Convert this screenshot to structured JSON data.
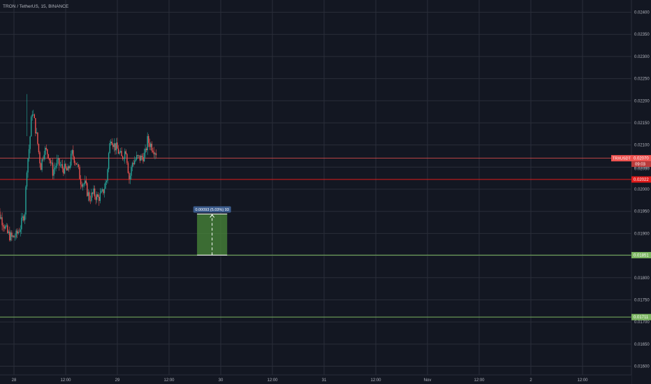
{
  "header": {
    "title": "TRON / TetherUS, 15, BINANCE"
  },
  "colors": {
    "background": "#131722",
    "grid": "#2a2e39",
    "up": "#26a69a",
    "down": "#ef5350",
    "axis_text": "#b2b5be",
    "price_line": "#ef5350",
    "level_red": "#e01b1b",
    "level_green": "#7bb661",
    "measure_fill": "#4a8a3a",
    "measure_label": "#3b5b8c"
  },
  "chart_data": {
    "type": "candlestick",
    "symbol": "TRON / TetherUS",
    "interval": "15",
    "exchange": "BINANCE",
    "ylim": [
      0.0158,
      0.0241
    ],
    "y_ticks": [
      "0.02400",
      "0.02350",
      "0.02300",
      "0.02250",
      "0.02200",
      "0.02150",
      "0.02100",
      "0.02050",
      "0.02000",
      "0.01950",
      "0.01900",
      "0.01850",
      "0.01800",
      "0.01750",
      "0.01700",
      "0.01650",
      "0.01600"
    ],
    "x_ticks": [
      "28",
      "12:00",
      "29",
      "12:00",
      "30",
      "12:00",
      "31",
      "12:00",
      "Nov",
      "12:00",
      "2",
      "12:00"
    ],
    "x_tick_positions_hours": [
      0,
      12,
      24,
      36,
      48,
      60,
      72,
      84,
      96,
      108,
      120,
      132
    ],
    "x_range_hours": [
      -4.5,
      148
    ],
    "price_segments_hours": [
      [
        -4.5,
        0.01965
      ],
      [
        -3.5,
        0.01945
      ],
      [
        -2.5,
        0.01925
      ],
      [
        -1.5,
        0.019
      ],
      [
        -0.5,
        0.0189
      ],
      [
        0.5,
        0.01895
      ],
      [
        1.5,
        0.01915
      ],
      [
        2.5,
        0.0195
      ],
      [
        3.0,
        0.0205
      ],
      [
        3.6,
        0.021
      ],
      [
        4.2,
        0.0218
      ],
      [
        4.8,
        0.0215
      ],
      [
        5.4,
        0.0211
      ],
      [
        6.2,
        0.0205
      ],
      [
        7.0,
        0.0209
      ],
      [
        8.0,
        0.0208
      ],
      [
        9.0,
        0.0204
      ],
      [
        10.0,
        0.0206
      ],
      [
        11.0,
        0.0205
      ],
      [
        12.5,
        0.0204
      ],
      [
        13.5,
        0.0208
      ],
      [
        14.5,
        0.0206
      ],
      [
        15.5,
        0.0202
      ],
      [
        16.5,
        0.0201
      ],
      [
        17.5,
        0.0198
      ],
      [
        18.5,
        0.0199
      ],
      [
        19.5,
        0.0198
      ],
      [
        20.5,
        0.0199
      ],
      [
        21.5,
        0.0202
      ],
      [
        22.0,
        0.0208
      ],
      [
        22.5,
        0.0212
      ],
      [
        23.2,
        0.021
      ],
      [
        24.0,
        0.0209
      ],
      [
        25.0,
        0.0207
      ],
      [
        26.0,
        0.0209
      ],
      [
        26.8,
        0.0202
      ],
      [
        27.5,
        0.0206
      ],
      [
        28.5,
        0.0207
      ],
      [
        29.5,
        0.0207
      ],
      [
        30.5,
        0.0208
      ],
      [
        31.0,
        0.0211
      ],
      [
        31.8,
        0.021
      ],
      [
        32.6,
        0.0209
      ],
      [
        33.2,
        0.0208
      ]
    ],
    "highs_lows": {
      "high": 0.02215,
      "low": 0.01885
    },
    "current_price": {
      "symbol_label": "TRXUSDT",
      "value": "0.02070",
      "countdown": "09:03",
      "hidden_label": "0.02050",
      "price": 0.0207
    },
    "levels": [
      {
        "name": "red-horizontal",
        "value": "0.02022",
        "price": 0.02022
      },
      {
        "name": "green-horizontal-upper",
        "value": "0.01851",
        "price": 0.01851
      },
      {
        "name": "green-horizontal-lower",
        "value": "0.01711",
        "price": 0.01711
      }
    ],
    "measure": {
      "label": "0.00093 (5.03%) 93",
      "from_price": 0.01851,
      "to_price": 0.01944,
      "from_hours": 42.5,
      "to_hours": 49.5
    }
  }
}
